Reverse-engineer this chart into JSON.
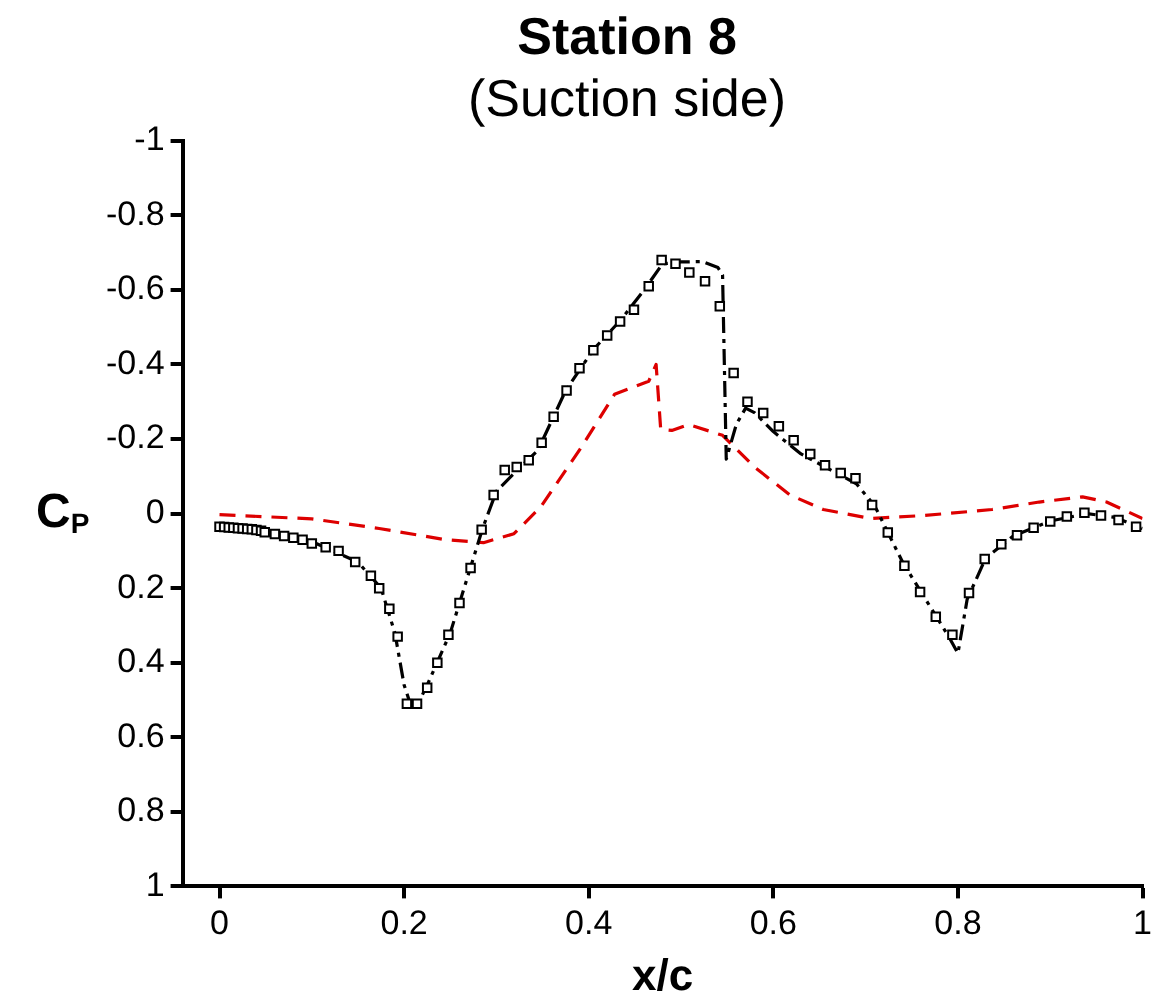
{
  "chart_data": {
    "type": "line",
    "title": "Station 8",
    "subtitle": "(Suction side)",
    "xlabel": "x/c",
    "ylabel": "C$_{P}$",
    "xlim": [
      -0.04,
      1
    ],
    "xticks": [
      0,
      0.2,
      0.4,
      0.6,
      0.8,
      1
    ],
    "ylim": [
      1,
      -1
    ],
    "yticks": [
      -1,
      -0.8,
      -0.6,
      -0.4,
      -0.2,
      0,
      0.2,
      0.4,
      0.6,
      0.8,
      1
    ],
    "grid": false,
    "legend": false,
    "series": [
      {
        "type": "scatter",
        "marker": "square",
        "color": "#000000",
        "x": [
          0,
          0.005,
          0.01,
          0.015,
          0.02,
          0.025,
          0.03,
          0.035,
          0.04,
          0.045,
          0.049,
          0.06,
          0.07,
          0.08,
          0.09,
          0.1,
          0.115,
          0.129,
          0.147,
          0.164,
          0.173,
          0.184,
          0.193,
          0.203,
          0.214,
          0.225,
          0.236,
          0.248,
          0.26,
          0.272,
          0.284,
          0.297,
          0.309,
          0.322,
          0.335,
          0.349,
          0.362,
          0.376,
          0.39,
          0.405,
          0.42,
          0.434,
          0.449,
          0.465,
          0.479,
          0.494,
          0.509,
          0.526,
          0.542,
          0.557,
          0.572,
          0.589,
          0.606,
          0.622,
          0.64,
          0.656,
          0.673,
          0.689,
          0.707,
          0.724,
          0.742,
          0.759,
          0.776,
          0.794,
          0.812,
          0.829,
          0.847,
          0.864,
          0.882,
          0.9,
          0.918,
          0.937,
          0.955,
          0.974,
          0.993
        ],
        "values": [
          0.035,
          0.036,
          0.037,
          0.038,
          0.039,
          0.04,
          0.041,
          0.042,
          0.044,
          0.046,
          0.05,
          0.055,
          0.06,
          0.065,
          0.07,
          0.08,
          0.09,
          0.1,
          0.13,
          0.167,
          0.2,
          0.255,
          0.33,
          0.51,
          0.51,
          0.467,
          0.4,
          0.325,
          0.24,
          0.146,
          0.043,
          -0.05,
          -0.117,
          -0.125,
          -0.143,
          -0.19,
          -0.26,
          -0.33,
          -0.39,
          -0.438,
          -0.478,
          -0.515,
          -0.547,
          -0.61,
          -0.68,
          -0.67,
          -0.647,
          -0.623,
          -0.556,
          -0.377,
          -0.3,
          -0.27,
          -0.234,
          -0.197,
          -0.16,
          -0.13,
          -0.109,
          -0.095,
          -0.023,
          0.051,
          0.14,
          0.21,
          0.277,
          0.325,
          0.213,
          0.122,
          0.082,
          0.058,
          0.038,
          0.021,
          0.008,
          -0.002,
          0.005,
          0.017,
          0.035
        ]
      },
      {
        "line_style": "dashdot",
        "color": "#000000",
        "x": [
          0,
          0.05,
          0.1,
          0.15,
          0.175,
          0.19,
          0.2,
          0.208,
          0.215,
          0.225,
          0.25,
          0.27,
          0.285,
          0.3,
          0.32,
          0.345,
          0.375,
          0.405,
          0.435,
          0.46,
          0.48,
          0.5,
          0.523,
          0.54,
          0.545,
          0.549,
          0.56,
          0.57,
          0.58,
          0.6,
          0.63,
          0.66,
          0.69,
          0.71,
          0.74,
          0.77,
          0.79,
          0.8,
          0.81,
          0.83,
          0.86,
          0.9,
          0.94,
          0.97,
          1
        ],
        "values": [
          0.035,
          0.048,
          0.075,
          0.13,
          0.2,
          0.32,
          0.46,
          0.52,
          0.51,
          0.46,
          0.32,
          0.16,
          0.04,
          -0.06,
          -0.11,
          -0.17,
          -0.33,
          -0.44,
          -0.52,
          -0.6,
          -0.67,
          -0.675,
          -0.676,
          -0.66,
          -0.64,
          -0.146,
          -0.24,
          -0.283,
          -0.27,
          -0.22,
          -0.16,
          -0.12,
          -0.08,
          -0.02,
          0.13,
          0.25,
          0.33,
          0.375,
          0.23,
          0.12,
          0.06,
          0.02,
          0,
          0.01,
          0.04
        ]
      },
      {
        "line_style": "dashed",
        "color": "#dd0000",
        "x": [
          0,
          0.1,
          0.173,
          0.245,
          0.286,
          0.319,
          0.348,
          0.392,
          0.428,
          0.465,
          0.473,
          0.478,
          0.49,
          0.508,
          0.545,
          0.581,
          0.618,
          0.654,
          0.705,
          0.764,
          0.837,
          0.888,
          0.935,
          0.961,
          1
        ],
        "values": [
          0.003,
          0.014,
          0.04,
          0.07,
          0.078,
          0.054,
          -0.018,
          -0.178,
          -0.32,
          -0.355,
          -0.4,
          -0.226,
          -0.223,
          -0.239,
          -0.21,
          -0.122,
          -0.05,
          -0.011,
          0.013,
          0.005,
          -0.011,
          -0.031,
          -0.045,
          -0.031,
          0.013
        ]
      }
    ]
  }
}
